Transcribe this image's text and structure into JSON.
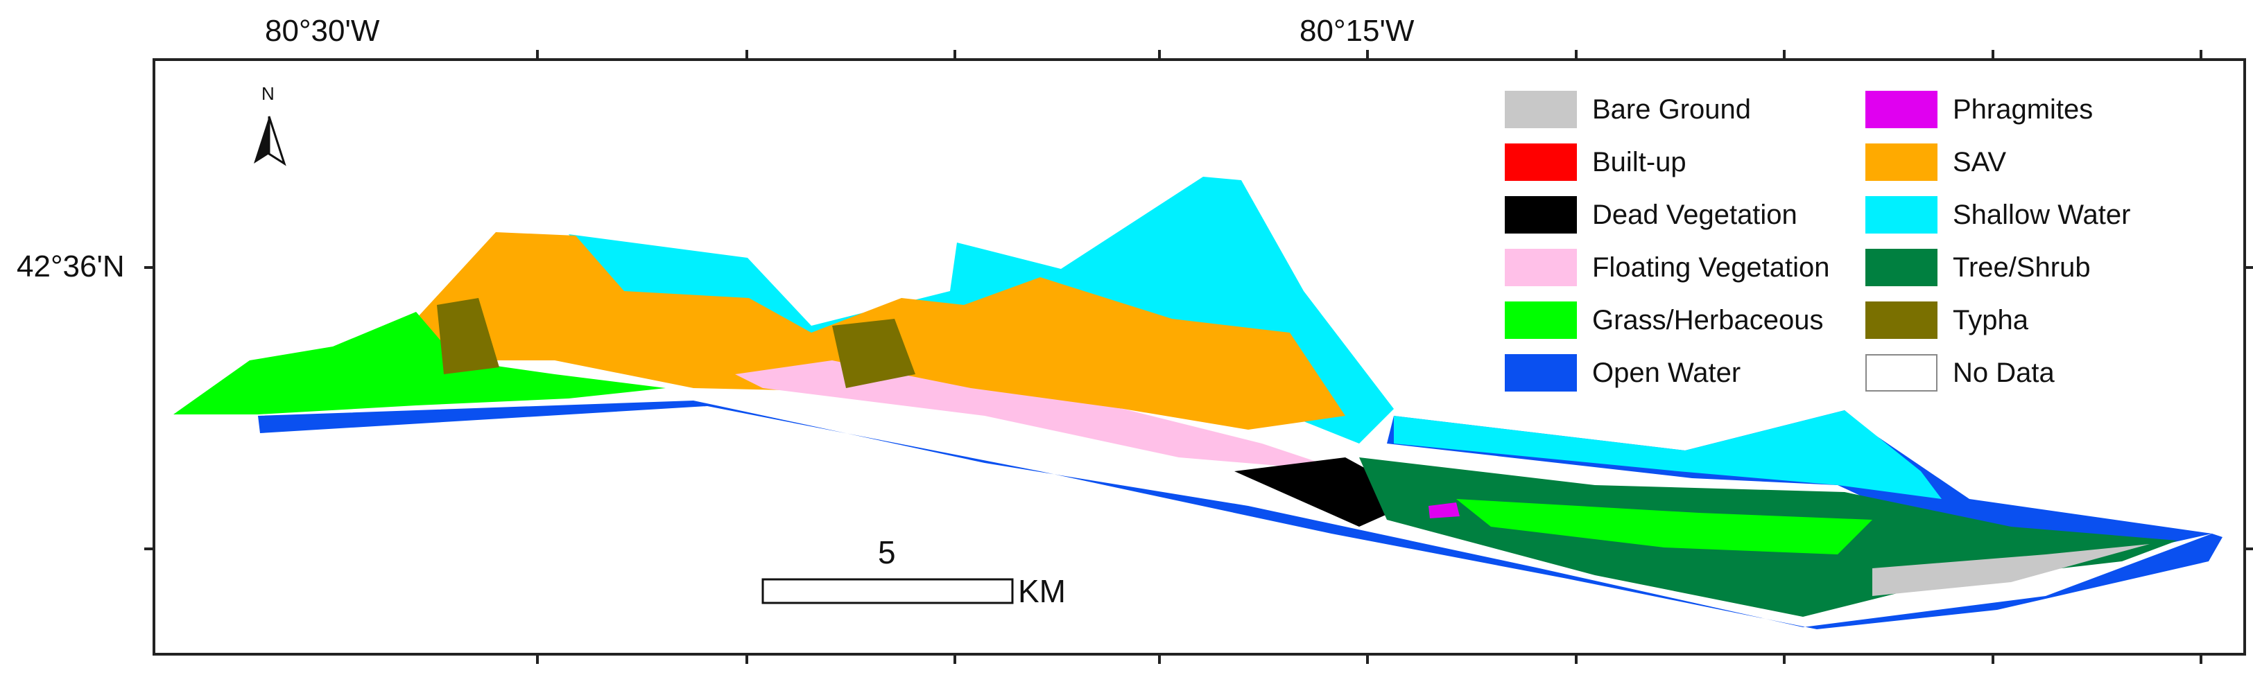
{
  "coordinates": {
    "top_left": "80°30'W",
    "top_right": "80°15'W",
    "left": "42°36'N"
  },
  "north_arrow": {
    "label": "N",
    "icon": "north-arrow-icon"
  },
  "legend": [
    {
      "label": "Bare Ground",
      "color": "#c8c8c8"
    },
    {
      "label": "Built-up",
      "color": "#ff0000"
    },
    {
      "label": "Dead Vegetation",
      "color": "#000000"
    },
    {
      "label": "Floating Vegetation",
      "color": "#ffc0e8"
    },
    {
      "label": "Grass/Herbaceous",
      "color": "#00ff00"
    },
    {
      "label": "Open Water",
      "color": "#0a50f0"
    },
    {
      "label": "Phragmites",
      "color": "#e000f0"
    },
    {
      "label": "SAV",
      "color": "#ffaa00"
    },
    {
      "label": "Shallow Water",
      "color": "#00f0ff"
    },
    {
      "label": "Tree/Shrub",
      "color": "#008040"
    },
    {
      "label": "Typha",
      "color": "#7a7000"
    },
    {
      "label": "No Data",
      "color": "#ffffff"
    }
  ],
  "scale_bar": {
    "value": "5",
    "unit": "KM"
  }
}
